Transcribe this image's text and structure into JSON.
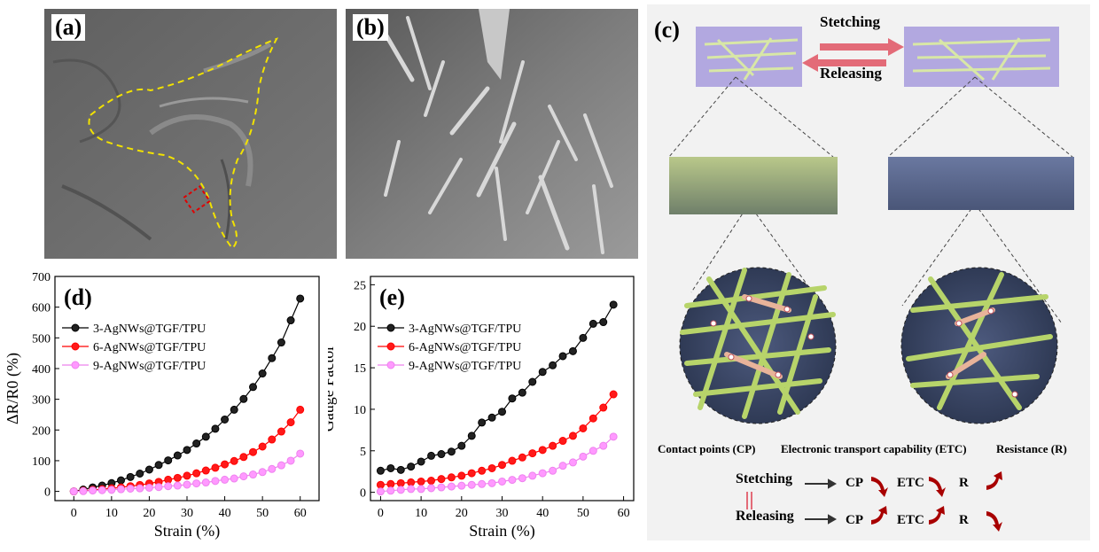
{
  "panels": {
    "a": {
      "label": "(a)"
    },
    "b": {
      "label": "(b)"
    },
    "c": {
      "label": "(c)",
      "stretch_label": "Stetching",
      "release_label": "Releasing",
      "legend_cp": "Contact points (CP)",
      "legend_etc": "Electronic transport capability (ETC)",
      "legend_r": "Resistance (R)",
      "row1_state": "Stetching",
      "row2_state": "Releasing",
      "cp": "CP",
      "etc": "ETC",
      "r": "R"
    },
    "d": {
      "label": "(d)"
    },
    "e": {
      "label": "(e)"
    }
  },
  "colors": {
    "series1": "#000000",
    "series2": "#ff0000",
    "series3": "#ee82ee",
    "arrow_red": "#a80000"
  },
  "chart_data": [
    {
      "panel": "d",
      "type": "line",
      "xlabel": "Strain (%)",
      "ylabel": "ΔR/R0 (%)",
      "xlim": [
        -5,
        65
      ],
      "ylim": [
        -30,
        700
      ],
      "xticks": [
        "0",
        "10",
        "20",
        "30",
        "40",
        "50",
        "60"
      ],
      "xtick_values": [
        0,
        10,
        20,
        30,
        40,
        50,
        60
      ],
      "yticks": [
        "0",
        "100",
        "200",
        "300",
        "400",
        "500",
        "600",
        "700"
      ],
      "ytick_values": [
        0,
        100,
        200,
        300,
        400,
        500,
        600,
        700
      ],
      "x": [
        0,
        2.5,
        5,
        7.5,
        10,
        12.5,
        15,
        17.5,
        20,
        22.5,
        25,
        27.5,
        30,
        32.5,
        35,
        37.5,
        40,
        42.5,
        45,
        47.5,
        50,
        52.5,
        55,
        57.5,
        60
      ],
      "series": [
        {
          "name": "3-AgNWs@TGF/TPU",
          "values": [
            0,
            6,
            13,
            19,
            27,
            36,
            47,
            58,
            71,
            86,
            101,
            117,
            135,
            156,
            178,
            204,
            234,
            266,
            301,
            340,
            384,
            434,
            485,
            557,
            628
          ]
        },
        {
          "name": "6-AgNWs@TGF/TPU",
          "values": [
            0,
            2,
            5,
            7,
            10,
            13,
            17,
            21,
            26,
            31,
            38,
            44,
            51,
            59,
            68,
            77,
            88,
            99,
            112,
            128,
            146,
            169,
            195,
            225,
            266
          ]
        },
        {
          "name": "9-AgNWs@TGF/TPU",
          "values": [
            0,
            1,
            3,
            4,
            5,
            7,
            9,
            10,
            12,
            14,
            17,
            19,
            22,
            26,
            29,
            34,
            38,
            42,
            49,
            55,
            63,
            73,
            85,
            100,
            123
          ]
        }
      ],
      "legend": "upper-left"
    },
    {
      "panel": "e",
      "type": "line",
      "xlabel": "Strain (%)",
      "ylabel": "Gauge Factor",
      "xlim": [
        -2.5,
        62.5
      ],
      "ylim": [
        -1,
        26
      ],
      "xticks": [
        "0",
        "10",
        "20",
        "30",
        "40",
        "50",
        "60"
      ],
      "xtick_values": [
        0,
        10,
        20,
        30,
        40,
        50,
        60
      ],
      "yticks": [
        "0",
        "5",
        "10",
        "15",
        "20",
        "25"
      ],
      "ytick_values": [
        0,
        5,
        10,
        15,
        20,
        25
      ],
      "x": [
        0,
        2.5,
        5,
        7.5,
        10,
        12.5,
        15,
        17.5,
        20,
        22.5,
        25,
        27.5,
        30,
        32.5,
        35,
        37.5,
        40,
        42.5,
        45,
        47.5,
        50,
        52.5,
        55,
        57.5
      ],
      "series": [
        {
          "name": "3-AgNWs@TGF/TPU",
          "values": [
            2.6,
            2.9,
            2.7,
            3.1,
            3.7,
            4.4,
            4.6,
            4.9,
            5.6,
            6.8,
            8.4,
            9.0,
            9.7,
            11.3,
            12.0,
            13.3,
            14.5,
            15.3,
            16.4,
            17.0,
            18.6,
            20.3,
            20.5,
            22.6
          ]
        },
        {
          "name": "6-AgNWs@TGF/TPU",
          "values": [
            0.9,
            1.0,
            1.1,
            1.2,
            1.3,
            1.4,
            1.6,
            1.8,
            2.0,
            2.3,
            2.6,
            2.9,
            3.3,
            3.8,
            4.2,
            4.7,
            5.1,
            5.6,
            6.2,
            6.8,
            7.7,
            8.9,
            10.2,
            11.8
          ]
        },
        {
          "name": "9-AgNWs@TGF/TPU",
          "values": [
            0.1,
            0.2,
            0.3,
            0.4,
            0.4,
            0.5,
            0.6,
            0.7,
            0.8,
            0.9,
            1.0,
            1.1,
            1.3,
            1.5,
            1.7,
            2.0,
            2.3,
            2.6,
            3.2,
            3.6,
            4.3,
            5.0,
            5.6,
            6.7
          ]
        }
      ],
      "legend": "upper-left"
    }
  ]
}
